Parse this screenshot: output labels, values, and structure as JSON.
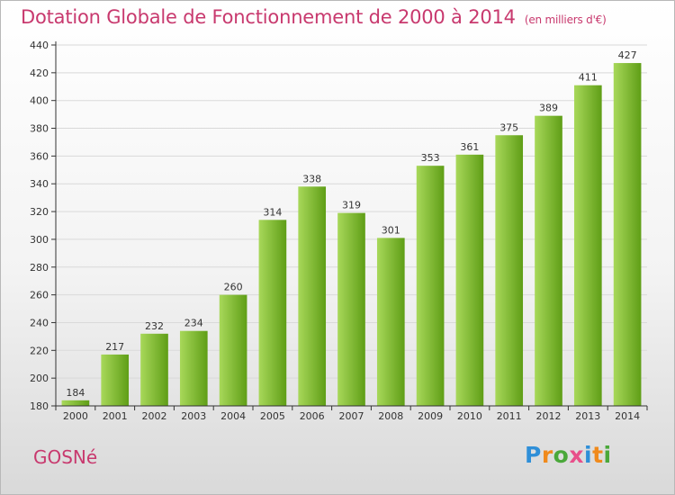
{
  "header": {
    "title": "Dotation Globale de Fonctionnement de 2000 à 2014",
    "subtitle": "(en milliers d'€)"
  },
  "footer": {
    "commune": "GOSNé",
    "brand": "Proxiti"
  },
  "colors": {
    "title": "#c8396e",
    "bar_light": "#a8d85a",
    "bar_dark": "#5f9e16",
    "grid": "#d9d9d9",
    "axis": "#333333",
    "logo_letters": [
      "#2f8fd8",
      "#f08a1c",
      "#4aa83a",
      "#e84f8a"
    ]
  },
  "chart_data": {
    "type": "bar",
    "categories": [
      "2000",
      "2001",
      "2002",
      "2003",
      "2004",
      "2005",
      "2006",
      "2007",
      "2008",
      "2009",
      "2010",
      "2011",
      "2012",
      "2013",
      "2014"
    ],
    "values": [
      184,
      217,
      232,
      234,
      260,
      314,
      338,
      319,
      301,
      353,
      361,
      375,
      389,
      411,
      427
    ],
    "data_labels": [
      "184",
      "217",
      "232",
      "234",
      "260",
      "314",
      "338",
      "319",
      "301",
      "353",
      "361",
      "375",
      "389",
      "411",
      "427"
    ],
    "ylim": [
      180,
      440
    ],
    "y_ticks": [
      180,
      200,
      220,
      240,
      260,
      280,
      300,
      320,
      340,
      360,
      380,
      400,
      420,
      440
    ],
    "xlabel": "",
    "ylabel": "",
    "grid": true,
    "legend": "none"
  }
}
